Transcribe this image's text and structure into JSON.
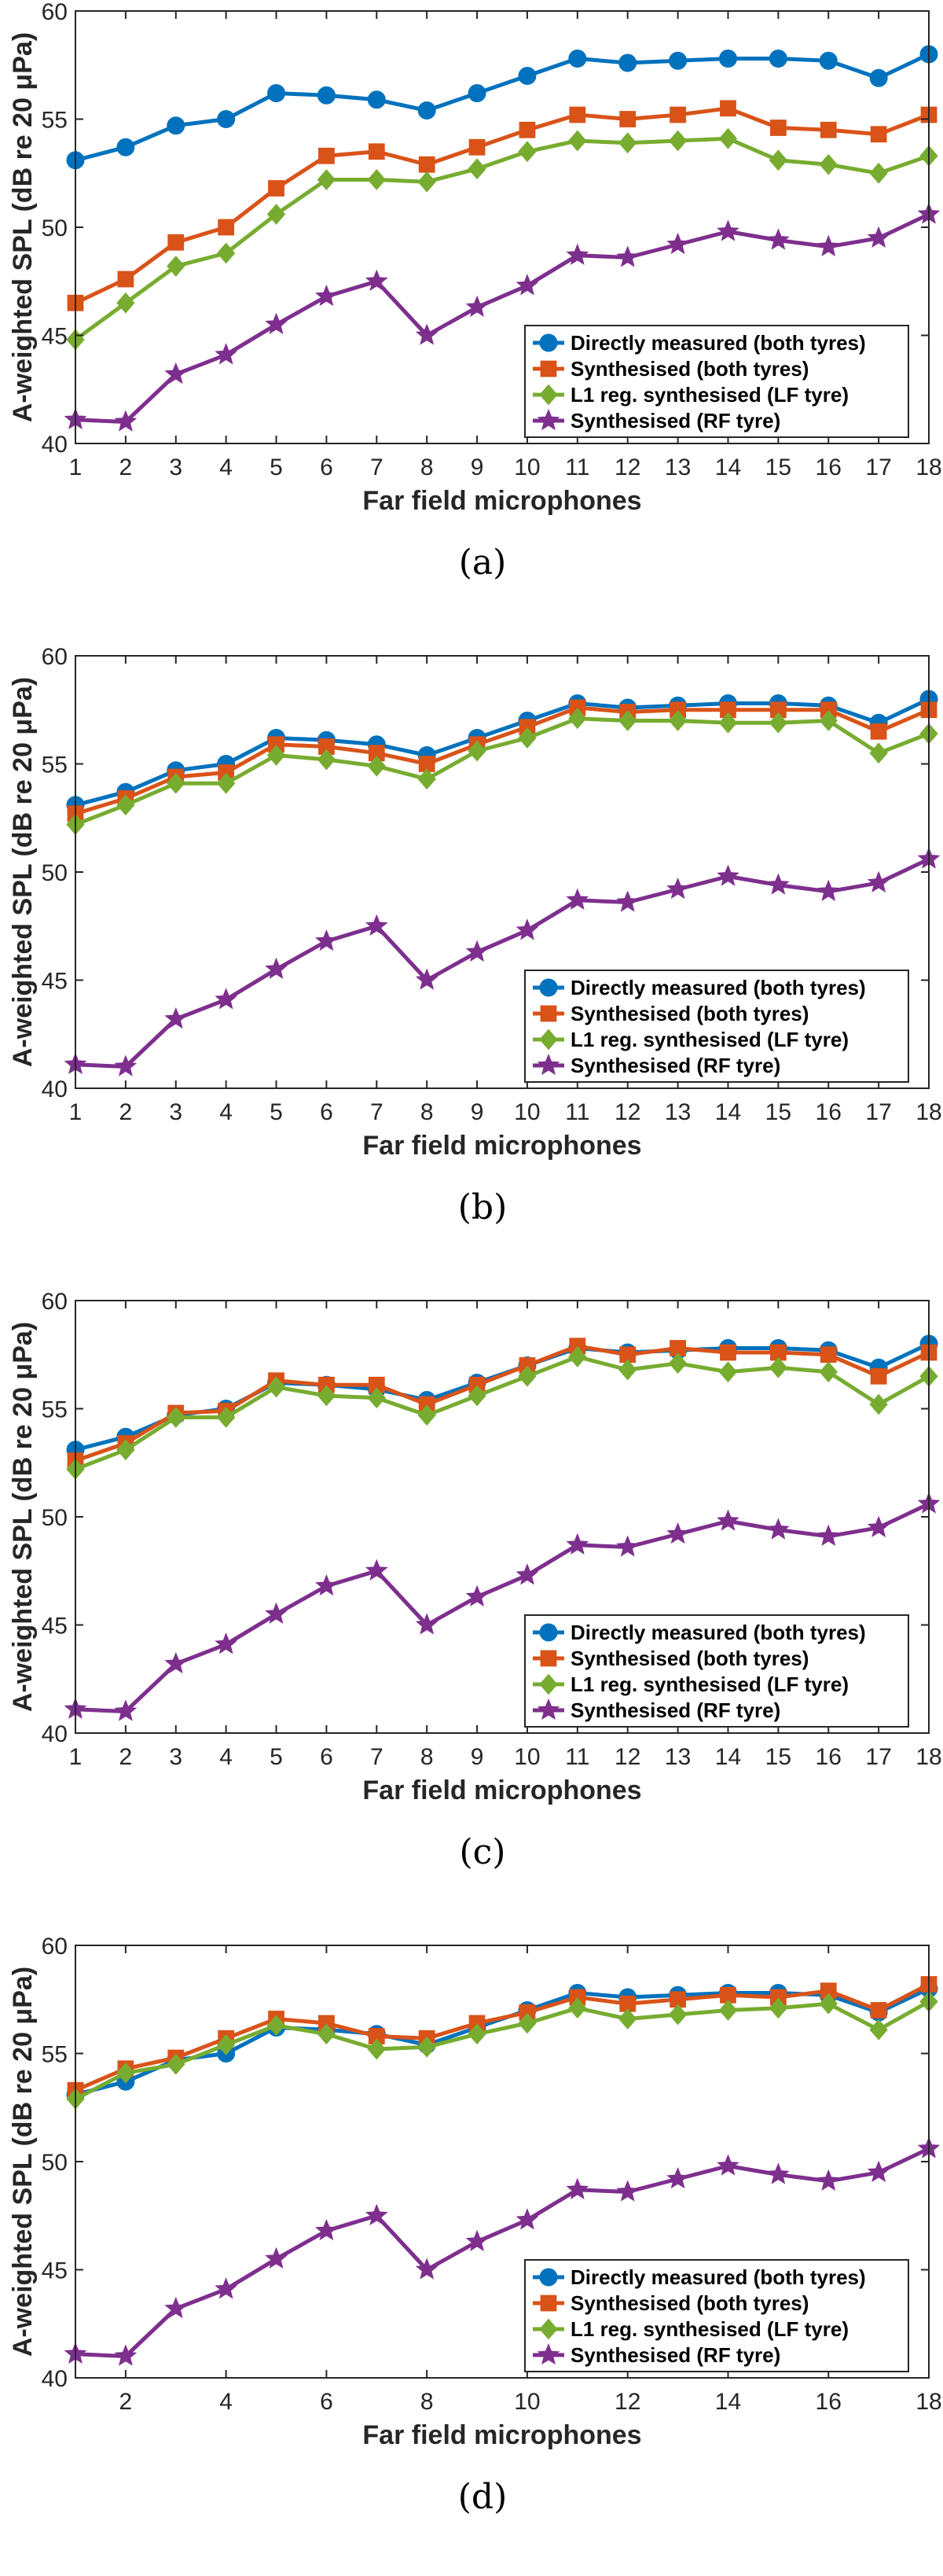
{
  "chart_data": [
    {
      "type": "line",
      "panel_label": "(a)",
      "xlabel": "Far field microphones",
      "ylabel": "A-weighted SPL (dB re 20 μPa)",
      "xlim": [
        1,
        18
      ],
      "ylim": [
        40,
        60
      ],
      "x": [
        1,
        2,
        3,
        4,
        5,
        6,
        7,
        8,
        9,
        10,
        11,
        12,
        13,
        14,
        15,
        16,
        17,
        18
      ],
      "xticks": [
        1,
        2,
        3,
        4,
        5,
        6,
        7,
        8,
        9,
        10,
        11,
        12,
        13,
        14,
        15,
        16,
        17,
        18
      ],
      "yticks": [
        40,
        45,
        50,
        55,
        60
      ],
      "legend_position": "lower-right",
      "series": [
        {
          "name": "Directly measured (both tyres)",
          "color": "#0072BD",
          "marker": "circle",
          "values": [
            53.1,
            53.7,
            54.7,
            55.0,
            56.2,
            56.1,
            55.9,
            55.4,
            56.2,
            57.0,
            57.8,
            57.6,
            57.7,
            57.8,
            57.8,
            57.7,
            56.9,
            58.0
          ]
        },
        {
          "name": "Synthesised (both tyres)",
          "color": "#D95319",
          "marker": "square",
          "values": [
            46.5,
            47.6,
            49.3,
            50.0,
            51.8,
            53.3,
            53.5,
            52.9,
            53.7,
            54.5,
            55.2,
            55.0,
            55.2,
            55.5,
            54.6,
            54.5,
            54.3,
            55.2
          ]
        },
        {
          "name": "L1 reg. synthesised (LF tyre)",
          "color": "#77AC30",
          "marker": "diamond",
          "values": [
            44.8,
            46.5,
            48.2,
            48.8,
            50.6,
            52.2,
            52.2,
            52.1,
            52.7,
            53.5,
            54.0,
            53.9,
            54.0,
            54.1,
            53.1,
            52.9,
            52.5,
            53.3
          ]
        },
        {
          "name": "Synthesised (RF tyre)",
          "color": "#7E2F8E",
          "marker": "star",
          "values": [
            41.1,
            41.0,
            43.2,
            44.1,
            45.5,
            46.8,
            47.5,
            45.0,
            46.3,
            47.3,
            48.7,
            48.6,
            49.2,
            49.8,
            49.4,
            49.1,
            49.5,
            50.6
          ]
        }
      ]
    },
    {
      "type": "line",
      "panel_label": "(b)",
      "xlabel": "Far field microphones",
      "ylabel": "A-weighted SPL (dB re 20 μPa)",
      "xlim": [
        1,
        18
      ],
      "ylim": [
        40,
        60
      ],
      "x": [
        1,
        2,
        3,
        4,
        5,
        6,
        7,
        8,
        9,
        10,
        11,
        12,
        13,
        14,
        15,
        16,
        17,
        18
      ],
      "xticks": [
        1,
        2,
        3,
        4,
        5,
        6,
        7,
        8,
        9,
        10,
        11,
        12,
        13,
        14,
        15,
        16,
        17,
        18
      ],
      "yticks": [
        40,
        45,
        50,
        55,
        60
      ],
      "legend_position": "lower-right",
      "series": [
        {
          "name": "Directly measured (both tyres)",
          "color": "#0072BD",
          "marker": "circle",
          "values": [
            53.1,
            53.7,
            54.7,
            55.0,
            56.2,
            56.1,
            55.9,
            55.4,
            56.2,
            57.0,
            57.8,
            57.6,
            57.7,
            57.8,
            57.8,
            57.7,
            56.9,
            58.0
          ]
        },
        {
          "name": "Synthesised (both tyres)",
          "color": "#D95319",
          "marker": "square",
          "values": [
            52.7,
            53.4,
            54.4,
            54.6,
            55.9,
            55.8,
            55.5,
            55.0,
            55.9,
            56.7,
            57.6,
            57.4,
            57.5,
            57.5,
            57.5,
            57.5,
            56.5,
            57.5
          ]
        },
        {
          "name": "L1 reg. synthesised (LF tyre)",
          "color": "#77AC30",
          "marker": "diamond",
          "values": [
            52.2,
            53.1,
            54.1,
            54.1,
            55.4,
            55.2,
            54.9,
            54.3,
            55.6,
            56.2,
            57.1,
            57.0,
            57.0,
            56.9,
            56.9,
            57.0,
            55.5,
            56.4
          ]
        },
        {
          "name": "Synthesised (RF tyre)",
          "color": "#7E2F8E",
          "marker": "star",
          "values": [
            41.1,
            41.0,
            43.2,
            44.1,
            45.5,
            46.8,
            47.5,
            45.0,
            46.3,
            47.3,
            48.7,
            48.6,
            49.2,
            49.8,
            49.4,
            49.1,
            49.5,
            50.6
          ]
        }
      ]
    },
    {
      "type": "line",
      "panel_label": "(c)",
      "xlabel": "Far field microphones",
      "ylabel": "A-weighted SPL (dB re 20 μPa)",
      "xlim": [
        1,
        18
      ],
      "ylim": [
        40,
        60
      ],
      "x": [
        1,
        2,
        3,
        4,
        5,
        6,
        7,
        8,
        9,
        10,
        11,
        12,
        13,
        14,
        15,
        16,
        17,
        18
      ],
      "xticks": [
        1,
        2,
        3,
        4,
        5,
        6,
        7,
        8,
        9,
        10,
        11,
        12,
        13,
        14,
        15,
        16,
        17,
        18
      ],
      "yticks": [
        40,
        45,
        50,
        55,
        60
      ],
      "legend_position": "lower-right",
      "series": [
        {
          "name": "Directly measured (both tyres)",
          "color": "#0072BD",
          "marker": "circle",
          "values": [
            53.1,
            53.7,
            54.7,
            55.0,
            56.2,
            56.1,
            55.9,
            55.4,
            56.2,
            57.0,
            57.8,
            57.6,
            57.7,
            57.8,
            57.8,
            57.7,
            56.9,
            58.0
          ]
        },
        {
          "name": "Synthesised (both tyres)",
          "color": "#D95319",
          "marker": "square",
          "values": [
            52.6,
            53.4,
            54.8,
            54.9,
            56.3,
            56.1,
            56.1,
            55.2,
            56.1,
            57.0,
            57.9,
            57.5,
            57.8,
            57.6,
            57.6,
            57.5,
            56.5,
            57.6
          ]
        },
        {
          "name": "L1 reg. synthesised (LF tyre)",
          "color": "#77AC30",
          "marker": "diamond",
          "values": [
            52.2,
            53.1,
            54.6,
            54.6,
            56.0,
            55.6,
            55.5,
            54.7,
            55.6,
            56.5,
            57.4,
            56.8,
            57.1,
            56.7,
            56.9,
            56.7,
            55.2,
            56.5
          ]
        },
        {
          "name": "Synthesised (RF tyre)",
          "color": "#7E2F8E",
          "marker": "star",
          "values": [
            41.1,
            41.0,
            43.2,
            44.1,
            45.5,
            46.8,
            47.5,
            45.0,
            46.3,
            47.3,
            48.7,
            48.6,
            49.2,
            49.8,
            49.4,
            49.1,
            49.5,
            50.6
          ]
        }
      ]
    },
    {
      "type": "line",
      "panel_label": "(d)",
      "xlabel": "Far field microphones",
      "ylabel": "A-weighted SPL (dB re 20 μPa)",
      "xlim": [
        1,
        18
      ],
      "ylim": [
        40,
        60
      ],
      "x": [
        1,
        2,
        3,
        4,
        5,
        6,
        7,
        8,
        9,
        10,
        11,
        12,
        13,
        14,
        15,
        16,
        17,
        18
      ],
      "xticks": [
        2,
        4,
        6,
        8,
        10,
        12,
        14,
        16,
        18
      ],
      "yticks": [
        40,
        45,
        50,
        55,
        60
      ],
      "legend_position": "lower-right",
      "series": [
        {
          "name": "Directly measured (both tyres)",
          "color": "#0072BD",
          "marker": "circle",
          "values": [
            53.1,
            53.7,
            54.7,
            55.0,
            56.2,
            56.1,
            55.9,
            55.4,
            56.2,
            57.0,
            57.8,
            57.6,
            57.7,
            57.8,
            57.8,
            57.7,
            56.9,
            58.0
          ]
        },
        {
          "name": "Synthesised (both tyres)",
          "color": "#D95319",
          "marker": "square",
          "values": [
            53.3,
            54.3,
            54.8,
            55.7,
            56.6,
            56.4,
            55.8,
            55.7,
            56.4,
            56.9,
            57.6,
            57.3,
            57.5,
            57.7,
            57.6,
            57.9,
            57.0,
            58.2
          ]
        },
        {
          "name": "L1 reg. synthesised (LF tyre)",
          "color": "#77AC30",
          "marker": "diamond",
          "values": [
            52.9,
            54.1,
            54.5,
            55.4,
            56.3,
            55.9,
            55.2,
            55.3,
            55.9,
            56.4,
            57.1,
            56.6,
            56.8,
            57.0,
            57.1,
            57.3,
            56.1,
            57.4
          ]
        },
        {
          "name": "Synthesised (RF tyre)",
          "color": "#7E2F8E",
          "marker": "star",
          "values": [
            41.1,
            41.0,
            43.2,
            44.1,
            45.5,
            46.8,
            47.5,
            45.0,
            46.3,
            47.3,
            48.7,
            48.6,
            49.2,
            49.8,
            49.4,
            49.1,
            49.5,
            50.6
          ]
        }
      ]
    }
  ]
}
